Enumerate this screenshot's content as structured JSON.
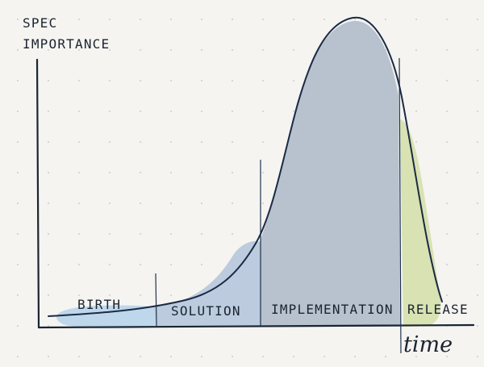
{
  "axes": {
    "y_label_line1": "SPEC",
    "y_label_line2": "IMPORTANCE",
    "x_label": "time"
  },
  "phases": [
    {
      "label": "BIRTH",
      "color": "#b9d4ea"
    },
    {
      "label": "SOLUTION",
      "color": "#b6c8dc"
    },
    {
      "label": "IMPLEMENTATION",
      "color": "#b4bfcc"
    },
    {
      "label": "RELEASE",
      "color": "#d6e0ae"
    }
  ],
  "colors": {
    "ink": "#1b2431",
    "paper": "#f5f4f1",
    "grid_dot": "#a9bccb"
  }
}
